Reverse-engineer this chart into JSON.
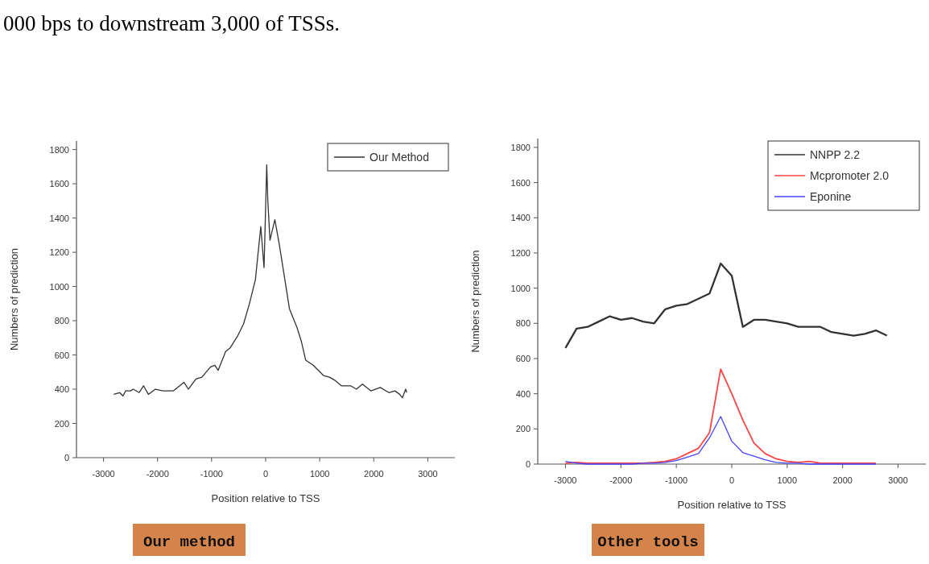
{
  "chart_data": [
    {
      "type": "line",
      "xlabel": "Position relative to TSS",
      "ylabel": "Numbers of prediction",
      "xlim": [
        -3500,
        3500
      ],
      "ylim": [
        0,
        1850
      ],
      "xticks": [
        -3000,
        -2000,
        -1000,
        0,
        1000,
        2000,
        3000
      ],
      "yticks": [
        0,
        200,
        400,
        600,
        800,
        1000,
        1200,
        1400,
        1600,
        1800
      ],
      "grid": false,
      "legend": "top right",
      "line_style": "solid",
      "annotations": [
        "000 bps to downstream 3,000 of TSSs.",
        "Our method"
      ],
      "series": [
        {
          "name": "Our Method",
          "color": "#333333",
          "x": [
            -2810,
            -2700,
            -2640,
            -2590,
            -2500,
            -2450,
            -2340,
            -2260,
            -2170,
            -2040,
            -1900,
            -1710,
            -1510,
            -1430,
            -1290,
            -1180,
            -1020,
            -940,
            -880,
            -740,
            -660,
            -520,
            -410,
            -300,
            -190,
            -90,
            -30,
            20,
            40,
            80,
            170,
            250,
            440,
            580,
            660,
            740,
            880,
            1070,
            1180,
            1290,
            1400,
            1570,
            1680,
            1790,
            1950,
            2120,
            2280,
            2390,
            2480,
            2530,
            2590,
            2610
          ],
          "values": [
            370,
            380,
            360,
            390,
            390,
            400,
            380,
            420,
            370,
            400,
            390,
            390,
            440,
            400,
            460,
            470,
            530,
            540,
            510,
            620,
            640,
            710,
            780,
            900,
            1040,
            1350,
            1110,
            1710,
            1500,
            1270,
            1390,
            1250,
            870,
            760,
            680,
            570,
            540,
            480,
            470,
            450,
            420,
            420,
            400,
            430,
            390,
            410,
            380,
            390,
            370,
            350,
            400,
            380
          ]
        }
      ]
    },
    {
      "type": "line",
      "xlabel": "Position relative to TSS",
      "ylabel": "Numbers of prediction",
      "xlim": [
        -3500,
        3500
      ],
      "ylim": [
        0,
        1850
      ],
      "xticks": [
        -3000,
        -2000,
        -1000,
        0,
        1000,
        2000,
        3000
      ],
      "yticks": [
        0,
        200,
        400,
        600,
        800,
        1000,
        1200,
        1400,
        1600,
        1800
      ],
      "grid": false,
      "legend": "top right",
      "line_style": "solid",
      "annotations": [
        "Other tools"
      ],
      "x": [
        -3000,
        -2800,
        -2600,
        -2400,
        -2200,
        -2000,
        -1800,
        -1600,
        -1400,
        -1200,
        -1000,
        -800,
        -600,
        -400,
        -200,
        0,
        200,
        400,
        600,
        800,
        1000,
        1200,
        1400,
        1600,
        1800,
        2000,
        2200,
        2400,
        2600,
        2800
      ],
      "series": [
        {
          "name": "NNPP 2.2",
          "color": "#333333",
          "values": [
            660,
            770,
            780,
            810,
            840,
            820,
            830,
            810,
            800,
            880,
            900,
            910,
            940,
            970,
            1140,
            1070,
            780,
            820,
            820,
            810,
            800,
            780,
            780,
            780,
            750,
            740,
            730,
            740,
            760,
            730
          ]
        },
        {
          "name": "Mcpromoter 2.0",
          "color": "#ff4444",
          "values": [
            5,
            10,
            5,
            5,
            5,
            5,
            5,
            5,
            10,
            15,
            30,
            60,
            90,
            180,
            540,
            400,
            250,
            120,
            60,
            30,
            15,
            10,
            15,
            5,
            5,
            5,
            5,
            5,
            5,
            null
          ]
        },
        {
          "name": "Eponine",
          "color": "#4444ff",
          "values": [
            15,
            5,
            0,
            0,
            0,
            0,
            0,
            5,
            5,
            10,
            20,
            40,
            60,
            150,
            270,
            130,
            65,
            45,
            25,
            10,
            5,
            5,
            0,
            0,
            0,
            0,
            0,
            0,
            0,
            null
          ]
        }
      ]
    }
  ]
}
